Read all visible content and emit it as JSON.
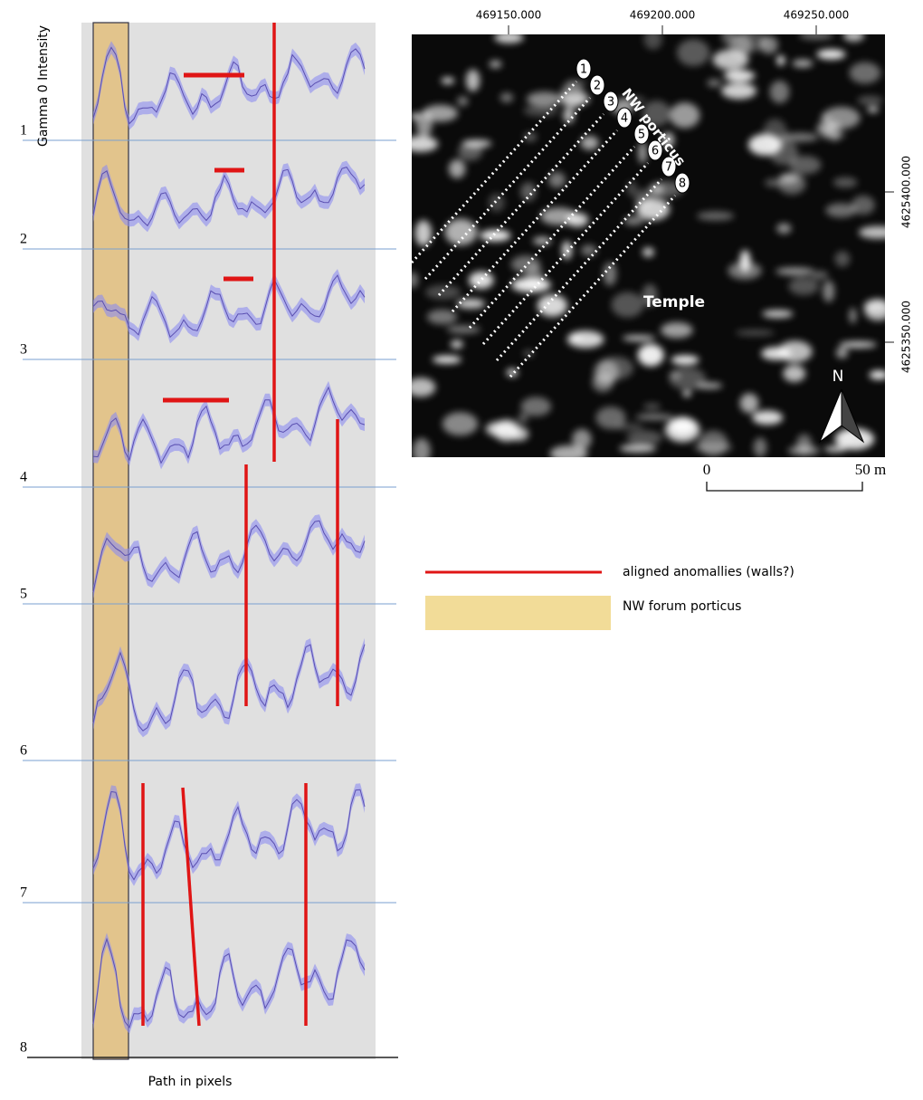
{
  "left_plot": {
    "y_axis_label": "Gamma 0 Intensity",
    "x_axis_label": "Path in pixels",
    "profile_labels": [
      "1",
      "2",
      "3",
      "4",
      "5",
      "6",
      "7",
      "8"
    ]
  },
  "map": {
    "x_ticks": [
      "469150.000",
      "469200.000",
      "469250.000"
    ],
    "y_ticks": [
      "4625400.000",
      "4625350.000"
    ],
    "transect_labels": [
      "1",
      "2",
      "3",
      "4",
      "5",
      "6",
      "7",
      "8"
    ],
    "porticus_label": "NW porticus",
    "temple_label": "Temple",
    "north_label": "N",
    "scale_start": "0",
    "scale_end": "50 m"
  },
  "legend": {
    "items": [
      "aligned anomallies (walls?)",
      "NW forum porticus"
    ]
  }
}
